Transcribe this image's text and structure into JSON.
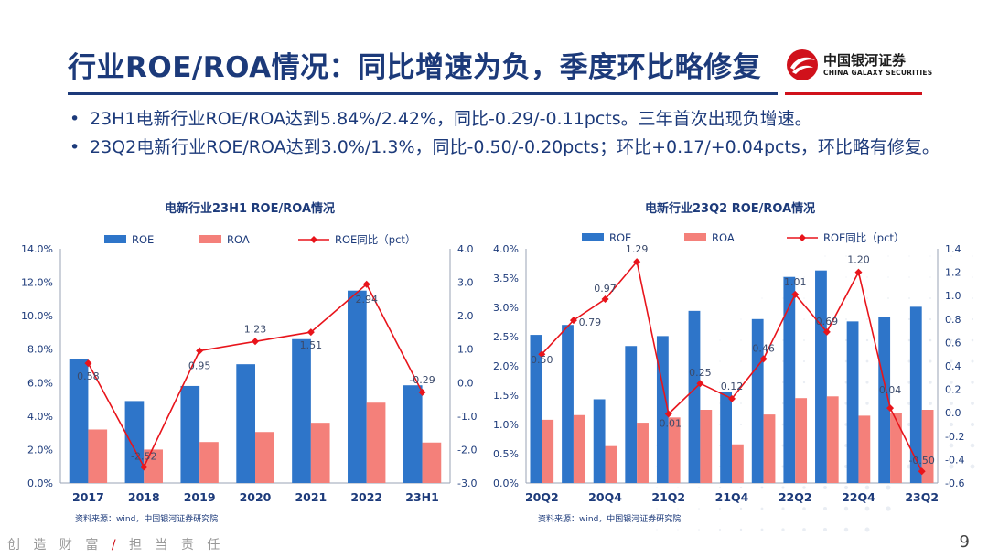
{
  "header": {
    "title": "行业ROE/ROA情况：同比增速为负，季度环比略修复",
    "logo_cn": "中国银河证券",
    "logo_en": "CHINA GALAXY SECURITIES"
  },
  "bullets": [
    "23H1电新行业ROE/ROA达到5.84%/2.42%，同比-0.29/-0.11pcts。三年首次出现负增速。",
    "23Q2电新行业ROE/ROA达到3.0%/1.3%，同比-0.50/-0.20pcts；环比+0.17/+0.04pcts，环比略有修复。"
  ],
  "footer": {
    "left": "创 造 财 富",
    "slash": "/",
    "right": "担 当 责 任",
    "page": "9"
  },
  "colors": {
    "roe": "#2e75c9",
    "roa": "#f4807a",
    "line": "#e8141b",
    "title": "#1c3a7a"
  },
  "chart_data": [
    {
      "type": "bar",
      "title": "电新行业23H1 ROE/ROA情况",
      "source": "资料来源：wind，中国银河证券研究院",
      "categories": [
        "2017",
        "2018",
        "2019",
        "2020",
        "2021",
        "2022",
        "23H1"
      ],
      "series": [
        {
          "name": "ROE",
          "type": "bar",
          "axis": "left",
          "values": [
            7.4,
            4.9,
            5.8,
            7.1,
            8.6,
            11.5,
            5.84
          ]
        },
        {
          "name": "ROA",
          "type": "bar",
          "axis": "left",
          "values": [
            3.2,
            2.0,
            2.45,
            3.05,
            3.6,
            4.8,
            2.42
          ]
        },
        {
          "name": "ROE同比（pct）",
          "type": "line",
          "axis": "right",
          "values": [
            0.58,
            -2.52,
            0.95,
            1.23,
            1.51,
            2.94,
            -0.29
          ],
          "labels": [
            "0.58",
            "-2.52",
            "0.95",
            "1.23",
            "1.51",
            "2.94",
            "-0.29"
          ]
        }
      ],
      "y_left": {
        "min": 0,
        "max": 14,
        "step": 2,
        "ticks": [
          "0.0%",
          "2.0%",
          "4.0%",
          "6.0%",
          "8.0%",
          "10.0%",
          "12.0%",
          "14.0%"
        ]
      },
      "y_right": {
        "min": -3,
        "max": 4,
        "step": 1,
        "ticks": [
          "-3.0",
          "-2.0",
          "-1.0",
          "0.0",
          "1.0",
          "2.0",
          "3.0",
          "4.0"
        ]
      },
      "legend": "top"
    },
    {
      "type": "bar",
      "title": "电新行业23Q2 ROE/ROA情况",
      "source": "资料来源：wind，中国银河证券研究院",
      "categories": [
        "20Q2",
        "20Q3",
        "20Q4",
        "21Q1",
        "21Q2",
        "21Q3",
        "21Q4",
        "22Q1",
        "22Q2",
        "22Q3",
        "22Q4",
        "23Q1",
        "23Q2"
      ],
      "x_tick_labels": [
        "20Q2",
        "",
        "20Q4",
        "",
        "21Q2",
        "",
        "21Q4",
        "",
        "22Q2",
        "",
        "22Q4",
        "",
        "23Q2"
      ],
      "series": [
        {
          "name": "ROE",
          "type": "bar",
          "axis": "left",
          "values": [
            2.53,
            2.7,
            1.43,
            2.34,
            2.51,
            2.94,
            1.55,
            2.8,
            3.52,
            3.63,
            2.76,
            2.84,
            3.01
          ]
        },
        {
          "name": "ROA",
          "type": "bar",
          "axis": "left",
          "values": [
            1.08,
            1.16,
            0.63,
            1.03,
            1.12,
            1.25,
            0.66,
            1.17,
            1.45,
            1.48,
            1.15,
            1.2,
            1.25
          ]
        },
        {
          "name": "ROE同比（pct）",
          "type": "line",
          "axis": "right",
          "values": [
            0.5,
            0.79,
            0.97,
            1.29,
            -0.01,
            0.25,
            0.12,
            0.46,
            1.01,
            0.69,
            1.2,
            0.04,
            -0.5
          ],
          "labels": [
            "0.50",
            "0.79",
            "0.97",
            "1.29",
            "-0.01",
            "0.25",
            "0.12",
            "0.46",
            "1.01",
            "0.69",
            "1.20",
            "0.04",
            "-0.50"
          ]
        }
      ],
      "y_left": {
        "min": 0,
        "max": 4,
        "step": 0.5,
        "ticks": [
          "0.0%",
          "0.5%",
          "1.0%",
          "1.5%",
          "2.0%",
          "2.5%",
          "3.0%",
          "3.5%",
          "4.0%"
        ]
      },
      "y_right": {
        "min": -0.6,
        "max": 1.4,
        "step": 0.2,
        "ticks": [
          "-0.6",
          "-0.4",
          "-0.2",
          "0.0",
          "0.2",
          "0.4",
          "0.6",
          "0.8",
          "1.0",
          "1.2",
          "1.4"
        ]
      },
      "legend": "top"
    }
  ]
}
